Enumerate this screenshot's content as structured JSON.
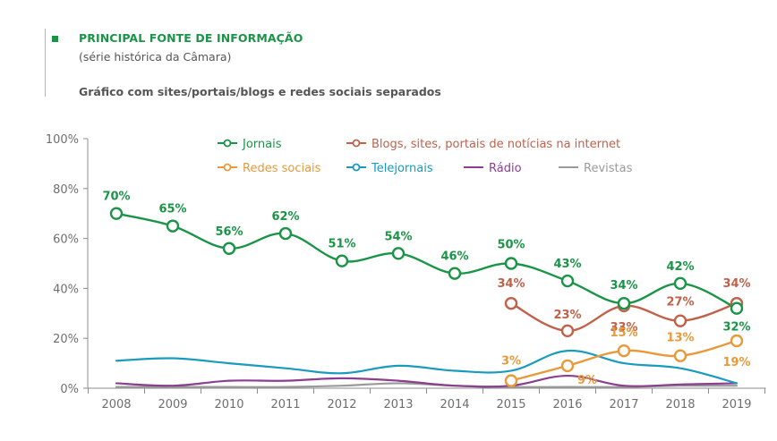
{
  "header": {
    "title": "PRINCIPAL FONTE DE INFORMAÇÃO",
    "subtitle": "(série histórica da Câmara)",
    "caption": "Gráfico com sites/portais/blogs e redes sociais separados"
  },
  "chart_data": {
    "type": "line",
    "title": "PRINCIPAL FONTE DE INFORMAÇÃO",
    "subtitle": "(série histórica da Câmara)",
    "xlabel": "",
    "ylabel": "",
    "x": [
      "2008",
      "2009",
      "2010",
      "2011",
      "2012",
      "2013",
      "2014",
      "2015",
      "2016",
      "2017",
      "2018",
      "2019"
    ],
    "ylim": [
      0,
      100
    ],
    "yticks": [
      "0%",
      "20%",
      "40%",
      "60%",
      "80%",
      "100%"
    ],
    "ytick_values": [
      0,
      20,
      40,
      60,
      80,
      100
    ],
    "grid": false,
    "legend_position": "top",
    "series": [
      {
        "name": "Jornais",
        "color": "#1a9447",
        "markers": true,
        "labeled": true,
        "values": [
          70,
          65,
          56,
          62,
          51,
          54,
          46,
          50,
          43,
          34,
          42,
          32
        ]
      },
      {
        "name": "Blogs, sites, portais de notícias na internet",
        "color": "#c0614a",
        "markers": true,
        "labeled": true,
        "values": [
          null,
          null,
          null,
          null,
          null,
          null,
          null,
          34,
          23,
          33,
          27,
          34
        ]
      },
      {
        "name": "Redes sociais",
        "color": "#e8993a",
        "markers": true,
        "labeled": true,
        "values": [
          null,
          null,
          null,
          null,
          null,
          null,
          null,
          3,
          9,
          15,
          13,
          19
        ]
      },
      {
        "name": "Telejornais",
        "color": "#1a9bbd",
        "markers": false,
        "labeled": false,
        "values": [
          11,
          12,
          10,
          8,
          6,
          9,
          7,
          7,
          15,
          10,
          8,
          2
        ]
      },
      {
        "name": "Rádio",
        "color": "#8b3f8f",
        "markers": false,
        "labeled": false,
        "values": [
          2,
          1,
          3,
          3,
          4,
          3,
          1,
          1,
          5,
          1,
          1.5,
          2
        ]
      },
      {
        "name": "Revistas",
        "color": "#9a9a9a",
        "markers": false,
        "labeled": false,
        "values": [
          0.5,
          0.5,
          0.5,
          0.5,
          1,
          2,
          1,
          0.5,
          0.5,
          0.5,
          1,
          1
        ]
      }
    ],
    "legend": [
      {
        "name": "Jornais",
        "icon": "line-circle"
      },
      {
        "name": "Blogs, sites, portais de notícias na internet",
        "icon": "line-circle"
      },
      {
        "name": "Redes sociais",
        "icon": "line-circle"
      },
      {
        "name": "Telejornais",
        "icon": "line-circle"
      },
      {
        "name": "Rádio",
        "icon": "line"
      },
      {
        "name": "Revistas",
        "icon": "line"
      }
    ]
  }
}
